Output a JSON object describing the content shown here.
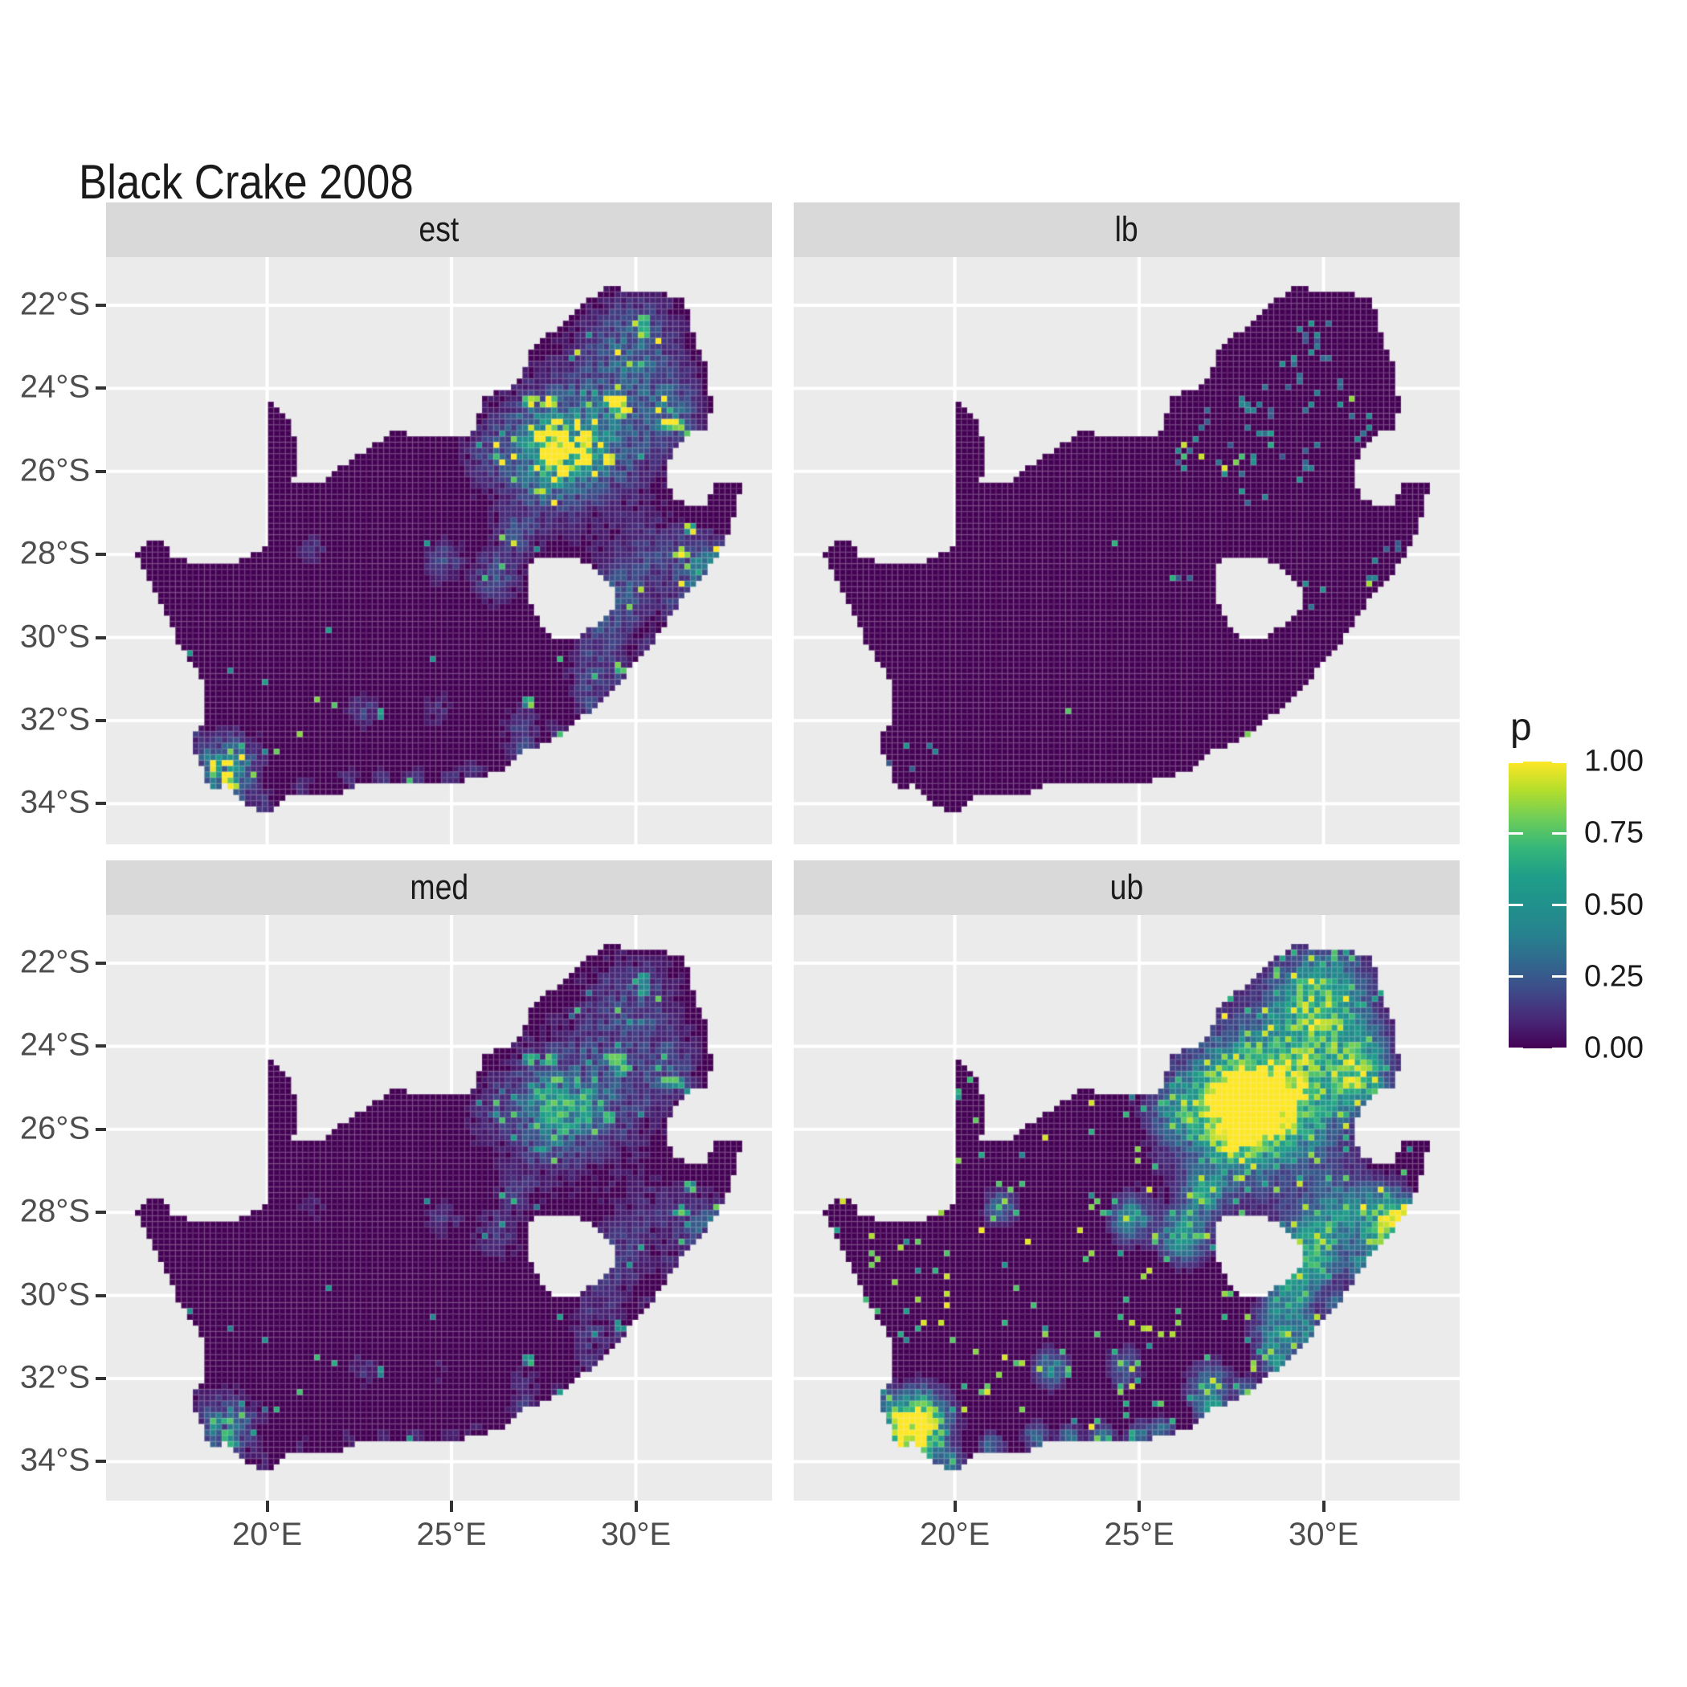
{
  "title": "Black Crake 2008",
  "facets": [
    {
      "key": "est",
      "label": "est"
    },
    {
      "key": "lb",
      "label": "lb"
    },
    {
      "key": "med",
      "label": "med"
    },
    {
      "key": "ub",
      "label": "ub"
    }
  ],
  "axes": {
    "x": {
      "tick_labels": [
        "20°E",
        "25°E",
        "30°E"
      ],
      "tick_lons": [
        20,
        25,
        30
      ]
    },
    "y": {
      "tick_labels": [
        "22°S",
        "24°S",
        "26°S",
        "28°S",
        "30°S",
        "32°S",
        "34°S"
      ],
      "tick_lats": [
        -22,
        -24,
        -26,
        -28,
        -30,
        -32,
        -34
      ]
    }
  },
  "legend": {
    "title": "p",
    "tick_labels": [
      "1.00",
      "0.75",
      "0.50",
      "0.25",
      "0.00"
    ],
    "tick_values": [
      1.0,
      0.75,
      0.5,
      0.25,
      0.0
    ]
  },
  "colors": {
    "background": "#FFFFFF",
    "panel_bg": "#EBEBEB",
    "strip_bg": "#D9D9D9",
    "grid": "#FFFFFF",
    "axis_text": "#4D4D4D",
    "tick_mark": "#333333",
    "text": "#1A1A1A",
    "cell_border": "rgba(255,255,255,0.13)",
    "viridis": [
      [
        0.0,
        "#440154"
      ],
      [
        0.1,
        "#482878"
      ],
      [
        0.2,
        "#3E4A89"
      ],
      [
        0.3,
        "#31688E"
      ],
      [
        0.4,
        "#26828E"
      ],
      [
        0.5,
        "#21918C"
      ],
      [
        0.6,
        "#1F9E89"
      ],
      [
        0.7,
        "#35B779"
      ],
      [
        0.8,
        "#6DCD59"
      ],
      [
        0.9,
        "#B4DE2C"
      ],
      [
        1.0,
        "#FDE725"
      ]
    ]
  },
  "chart_data": {
    "type": "heatmap",
    "title": "Black Crake 2008",
    "region": "South Africa occupancy-probability raster, faceted by estimate type",
    "facet_variable_values": [
      "est",
      "lb",
      "med",
      "ub"
    ],
    "value_name": "p",
    "value_range": [
      0,
      1
    ],
    "x_range_lon": [
      15.63,
      33.69
    ],
    "y_range_lat": [
      -35.56,
      -21.42
    ],
    "x_breaks_lon": [
      20,
      25,
      30
    ],
    "y_breaks_lat": [
      -22,
      -24,
      -26,
      -28,
      -30,
      -32,
      -34
    ],
    "cell_size_deg": [
      0.157,
      0.139
    ],
    "grid": "major gridlines only, white on grey panel",
    "legend_position": "right",
    "mainland": [
      [
        16.45,
        -28.6
      ],
      [
        16.8,
        -28.3
      ],
      [
        17.2,
        -28.22
      ],
      [
        17.4,
        -28.6
      ],
      [
        17.95,
        -28.8
      ],
      [
        18.6,
        -28.85
      ],
      [
        19.3,
        -28.72
      ],
      [
        19.98,
        -28.43
      ],
      [
        19.98,
        -24.77
      ],
      [
        20.35,
        -25.05
      ],
      [
        20.65,
        -25.5
      ],
      [
        20.82,
        -26.1
      ],
      [
        20.7,
        -26.85
      ],
      [
        21.5,
        -26.86
      ],
      [
        22.1,
        -26.4
      ],
      [
        22.85,
        -25.95
      ],
      [
        23.45,
        -25.62
      ],
      [
        24.2,
        -25.75
      ],
      [
        24.9,
        -25.8
      ],
      [
        25.55,
        -25.65
      ],
      [
        25.9,
        -24.75
      ],
      [
        26.45,
        -24.65
      ],
      [
        26.9,
        -24.3
      ],
      [
        27.15,
        -23.65
      ],
      [
        27.75,
        -23.2
      ],
      [
        28.2,
        -22.85
      ],
      [
        29.05,
        -22.2
      ],
      [
        29.45,
        -22.15
      ],
      [
        30.0,
        -22.3
      ],
      [
        30.65,
        -22.3
      ],
      [
        31.3,
        -22.4
      ],
      [
        31.55,
        -23.2
      ],
      [
        31.85,
        -23.95
      ],
      [
        31.98,
        -24.3
      ],
      [
        32.05,
        -25.1
      ],
      [
        31.95,
        -25.5
      ],
      [
        31.3,
        -25.75
      ],
      [
        30.9,
        -26.3
      ],
      [
        30.8,
        -26.85
      ],
      [
        31.05,
        -27.25
      ],
      [
        31.55,
        -27.4
      ],
      [
        31.97,
        -27.32
      ],
      [
        32.13,
        -26.86
      ],
      [
        32.89,
        -26.86
      ],
      [
        32.55,
        -28.0
      ],
      [
        32.0,
        -28.9
      ],
      [
        31.05,
        -29.9
      ],
      [
        30.3,
        -30.9
      ],
      [
        29.5,
        -31.7
      ],
      [
        28.8,
        -32.3
      ],
      [
        28.0,
        -32.95
      ],
      [
        27.0,
        -33.3
      ],
      [
        26.4,
        -33.75
      ],
      [
        25.65,
        -34.0
      ],
      [
        24.9,
        -34.05
      ],
      [
        24.1,
        -34.1
      ],
      [
        23.4,
        -34.1
      ],
      [
        22.55,
        -34.05
      ],
      [
        21.9,
        -34.4
      ],
      [
        21.0,
        -34.4
      ],
      [
        20.45,
        -34.45
      ],
      [
        20.0,
        -34.82
      ],
      [
        19.35,
        -34.6
      ],
      [
        18.85,
        -34.1
      ],
      [
        18.45,
        -34.32
      ],
      [
        18.3,
        -33.9
      ],
      [
        17.9,
        -33.1
      ],
      [
        18.3,
        -32.55
      ],
      [
        18.25,
        -31.6
      ],
      [
        17.6,
        -30.7
      ],
      [
        17.05,
        -29.7
      ],
      [
        16.7,
        -29.0
      ]
    ],
    "lesotho_hole": [
      [
        27.0,
        -28.9
      ],
      [
        27.55,
        -28.6
      ],
      [
        28.2,
        -28.62
      ],
      [
        28.7,
        -28.8
      ],
      [
        29.15,
        -29.15
      ],
      [
        29.45,
        -29.55
      ],
      [
        29.35,
        -29.95
      ],
      [
        28.9,
        -30.3
      ],
      [
        28.25,
        -30.65
      ],
      [
        27.75,
        -30.55
      ],
      [
        27.35,
        -30.15
      ],
      [
        27.05,
        -29.6
      ]
    ],
    "hotspots": [
      [
        28.0,
        -26.1,
        0.5,
        1.0
      ],
      [
        28.2,
        -25.72,
        0.75,
        0.55
      ],
      [
        28.1,
        -26.05,
        1.6,
        0.3
      ],
      [
        29.25,
        -25.85,
        0.8,
        0.4
      ],
      [
        29.6,
        -23.8,
        0.7,
        0.4
      ],
      [
        30.2,
        -23.3,
        0.8,
        0.32
      ],
      [
        30.9,
        -24.85,
        0.6,
        0.35
      ],
      [
        30.95,
        -25.45,
        0.45,
        0.4
      ],
      [
        27.1,
        -25.7,
        0.5,
        0.4
      ],
      [
        26.15,
        -26.2,
        0.45,
        0.35
      ],
      [
        27.45,
        -26.8,
        0.45,
        0.45
      ],
      [
        26.8,
        -28.05,
        0.35,
        0.4
      ],
      [
        26.2,
        -29.12,
        0.4,
        0.5
      ],
      [
        24.77,
        -28.74,
        0.35,
        0.4
      ],
      [
        29.6,
        -29.6,
        0.55,
        0.5
      ],
      [
        29.0,
        -30.6,
        0.45,
        0.35
      ],
      [
        30.4,
        -28.6,
        0.6,
        0.3
      ],
      [
        28.8,
        -31.6,
        0.45,
        0.35
      ],
      [
        26.9,
        -32.8,
        0.4,
        0.3
      ],
      [
        18.75,
        -33.9,
        0.55,
        0.75
      ],
      [
        19.2,
        -33.55,
        0.45,
        0.4
      ],
      [
        22.6,
        -32.35,
        0.3,
        0.35
      ],
      [
        24.6,
        -32.3,
        0.3,
        0.25
      ],
      [
        21.25,
        -28.45,
        0.28,
        0.3
      ],
      [
        31.6,
        -28.8,
        0.55,
        0.4
      ],
      [
        32.0,
        -28.7,
        0.35,
        0.35
      ]
    ],
    "coast_hotspots": [
      [
        17.9,
        -32.9
      ],
      [
        18.5,
        -33.6
      ],
      [
        19.0,
        -34.3
      ],
      [
        19.9,
        -34.6
      ],
      [
        21.0,
        -34.2
      ],
      [
        22.2,
        -34.0
      ],
      [
        23.1,
        -34.05
      ],
      [
        24.0,
        -34.0
      ],
      [
        25.0,
        -33.95
      ],
      [
        25.65,
        -33.85
      ],
      [
        26.9,
        -33.3
      ],
      [
        27.95,
        -32.9
      ],
      [
        28.7,
        -32.2
      ],
      [
        29.6,
        -31.4
      ],
      [
        30.4,
        -30.8
      ],
      [
        30.95,
        -29.9
      ],
      [
        31.4,
        -29.3
      ],
      [
        32.0,
        -28.7
      ]
    ],
    "coast_hotspot_sigma": 0.22,
    "coast_hotspot_amp": 0.28,
    "facet_models": {
      "est": {
        "gain": 0.62,
        "spike_base": 0.01,
        "spike_hot": 0.22,
        "spike_level": 0.9
      },
      "lb": {
        "spike_base": 0.0012,
        "spike_hot": 0.015
      },
      "med": {
        "scale_lo": 0.5,
        "scale_rand": 0.3,
        "spike_level": 0.78
      },
      "ub": {
        "gain": 1.55,
        "spike_base": 0.02,
        "spike_hot": 0.3,
        "extra_speckle": 0.018
      }
    }
  }
}
